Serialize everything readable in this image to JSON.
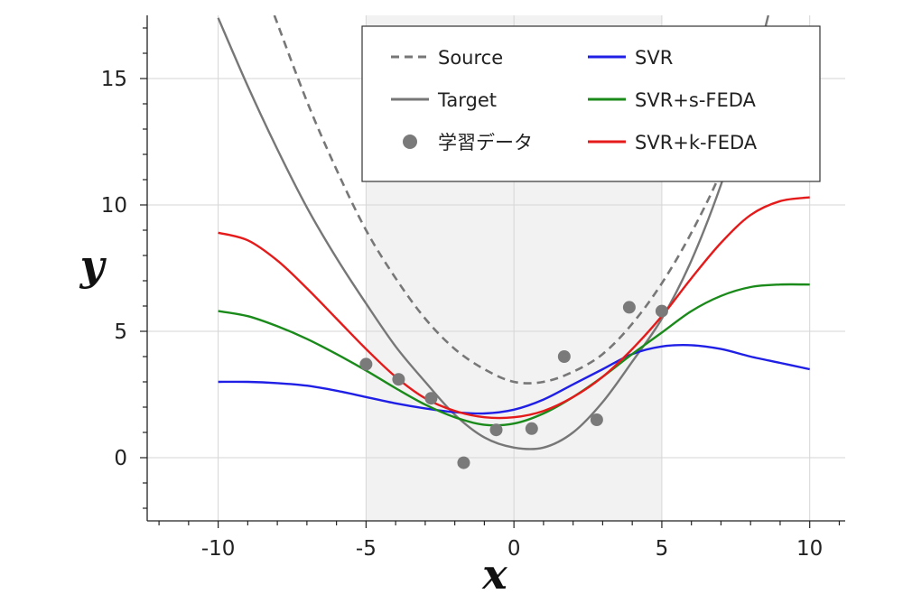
{
  "chart_data": {
    "type": "line",
    "xlabel": "x",
    "ylabel": "y",
    "xlim": [
      -12.4,
      11.2
    ],
    "ylim": [
      -2.5,
      17.5
    ],
    "x_ticks": [
      -10,
      -5,
      0,
      5,
      10
    ],
    "y_ticks": [
      0,
      5,
      10,
      15
    ],
    "grid": true,
    "shaded_region": {
      "x": [
        -5,
        5
      ],
      "color": "#f2f2f2"
    },
    "legend_position": "top-right",
    "series": [
      {
        "name": "Source",
        "style": "dashed",
        "color": "#777777",
        "x": [
          -8.1,
          -7,
          -6,
          -5,
          -4,
          -3,
          -2,
          -1,
          0,
          1,
          2,
          3,
          4,
          5,
          6,
          7,
          8,
          8.7
        ],
        "y": [
          17.5,
          14.1,
          11.4,
          9.0,
          7.1,
          5.5,
          4.3,
          3.5,
          3.0,
          3.0,
          3.4,
          4.1,
          5.3,
          6.9,
          8.9,
          11.3,
          14.2,
          16.7
        ]
      },
      {
        "name": "Target",
        "style": "solid",
        "color": "#777777",
        "x": [
          -10,
          -9,
          -8,
          -7,
          -6,
          -5,
          -4,
          -3,
          -2,
          -1,
          0,
          1,
          2,
          3,
          4,
          5,
          6,
          7,
          7.8,
          8.6
        ],
        "y": [
          17.4,
          14.7,
          12.2,
          9.9,
          7.9,
          6.1,
          4.4,
          3.0,
          1.7,
          0.8,
          0.4,
          0.4,
          1.0,
          2.2,
          3.8,
          5.5,
          7.8,
          10.8,
          13.8,
          17.5
        ]
      },
      {
        "name": "学習データ",
        "style": "points",
        "color": "#7a7a7a",
        "x": [
          -5,
          -3.9,
          -2.8,
          -1.7,
          -0.6,
          0.6,
          1.7,
          2.8,
          3.9,
          5.0
        ],
        "y": [
          3.7,
          3.1,
          2.35,
          -0.2,
          1.1,
          1.15,
          4.0,
          1.5,
          5.95,
          5.8
        ]
      },
      {
        "name": "SVR",
        "style": "solid",
        "color": "#1f1fe6",
        "x": [
          -10,
          -9,
          -8,
          -7,
          -6,
          -5,
          -4,
          -3,
          -2,
          -1,
          0,
          1,
          2,
          3,
          4,
          5,
          6,
          7,
          8,
          9,
          10
        ],
        "y": [
          3.0,
          3.0,
          2.95,
          2.85,
          2.65,
          2.4,
          2.15,
          1.95,
          1.8,
          1.75,
          1.9,
          2.3,
          2.9,
          3.5,
          4.1,
          4.4,
          4.45,
          4.3,
          4.0,
          3.75,
          3.5
        ]
      },
      {
        "name": "SVR+s-FEDA",
        "style": "solid",
        "color": "#1a8a1a",
        "x": [
          -10,
          -9,
          -8,
          -7,
          -6,
          -5,
          -4,
          -3,
          -2,
          -1,
          0,
          1,
          2,
          3,
          4,
          5,
          6,
          7,
          8,
          9,
          10
        ],
        "y": [
          5.8,
          5.6,
          5.2,
          4.7,
          4.1,
          3.45,
          2.75,
          2.1,
          1.6,
          1.3,
          1.35,
          1.75,
          2.4,
          3.2,
          4.1,
          4.95,
          5.8,
          6.4,
          6.75,
          6.85,
          6.85
        ]
      },
      {
        "name": "SVR+k-FEDA",
        "style": "solid",
        "color": "#e51a1a",
        "x": [
          -10,
          -9,
          -8,
          -7,
          -6,
          -5,
          -4,
          -3,
          -2,
          -1,
          0,
          1,
          2,
          3,
          4,
          5,
          6,
          7,
          8,
          9,
          10
        ],
        "y": [
          8.9,
          8.6,
          7.8,
          6.7,
          5.5,
          4.3,
          3.2,
          2.35,
          1.85,
          1.6,
          1.6,
          1.85,
          2.4,
          3.2,
          4.3,
          5.6,
          7.1,
          8.5,
          9.6,
          10.15,
          10.3
        ]
      }
    ]
  }
}
